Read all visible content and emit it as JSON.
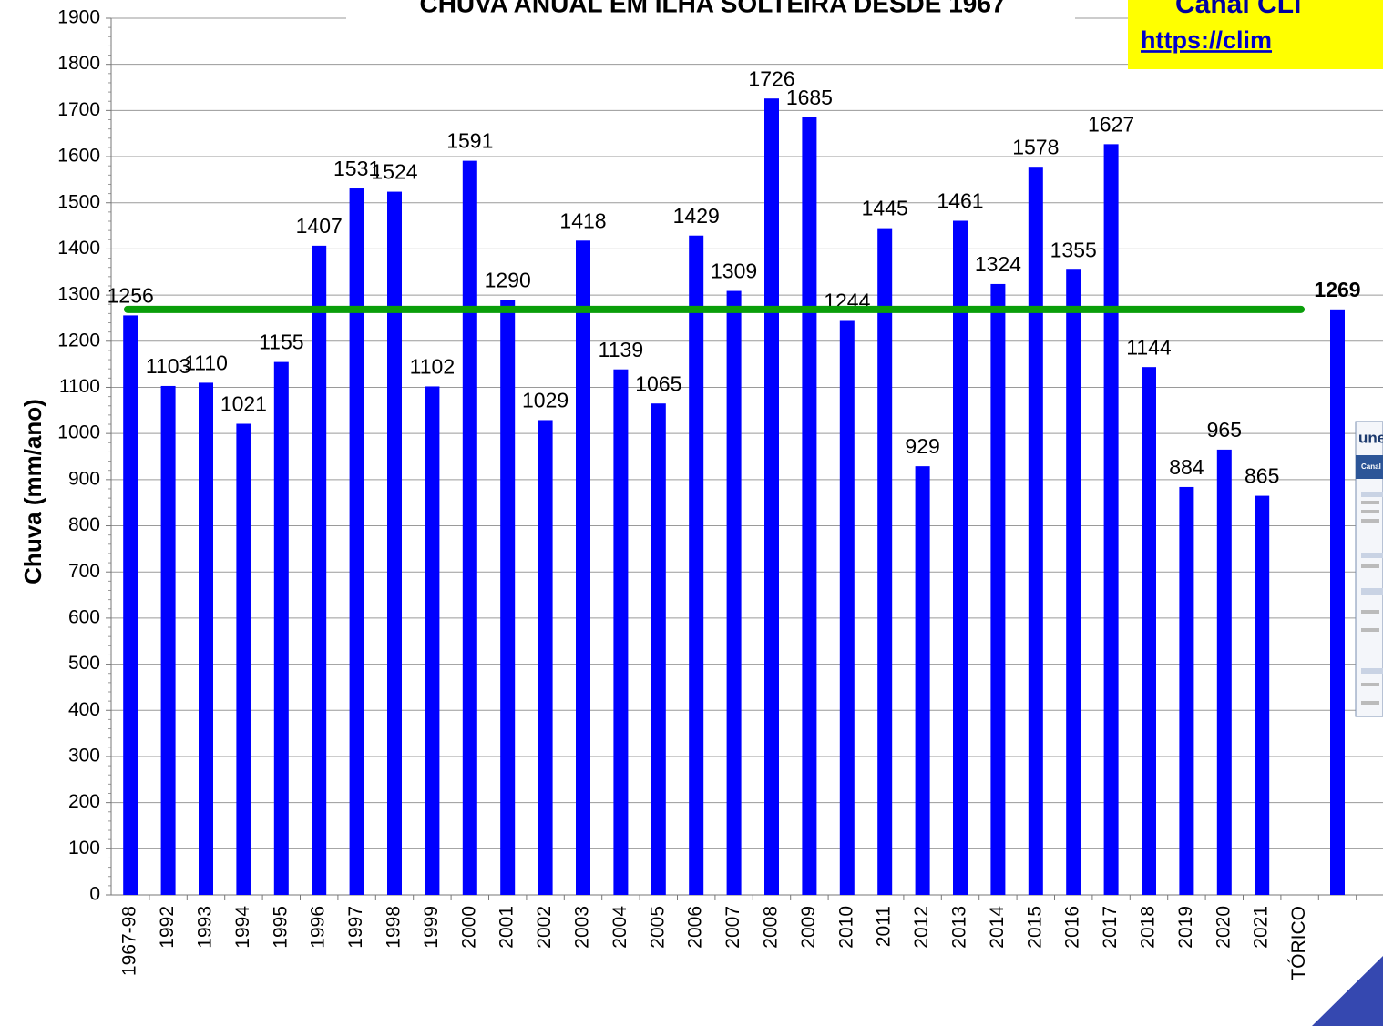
{
  "chart_data": {
    "type": "bar",
    "title": "CHUVA ANUAL EM ILHA SOLTEIRA DESDE 1967",
    "y_label": "Chuva (mm/ano)",
    "categories": [
      "1967-98",
      "1992",
      "1993",
      "1994",
      "1995",
      "1996",
      "1997",
      "1998",
      "1999",
      "2000",
      "2001",
      "2002",
      "2003",
      "2004",
      "2005",
      "2006",
      "2007",
      "2008",
      "2009",
      "2010",
      "2011",
      "2012",
      "2013",
      "2014",
      "2015",
      "2016",
      "2017",
      "2018",
      "2019",
      "2020",
      "2021",
      "TÓRICO",
      null
    ],
    "values": [
      1256,
      1103,
      1110,
      1021,
      1155,
      1407,
      1531,
      1524,
      1102,
      1591,
      1290,
      1029,
      1418,
      1139,
      1065,
      1429,
      1309,
      1726,
      1685,
      1244,
      1445,
      929,
      1461,
      1324,
      1578,
      1355,
      1627,
      1144,
      884,
      965,
      865,
      null,
      1269
    ],
    "color": "#0000ff",
    "ylim": [
      0,
      1900
    ],
    "yticks": [
      0,
      100,
      200,
      300,
      400,
      500,
      600,
      700,
      800,
      900,
      1000,
      1100,
      1200,
      1300,
      1400,
      1500,
      1600,
      1700,
      1800,
      1900
    ],
    "grid": true,
    "average_line": {
      "value": 1269,
      "color": "#0a9e0a"
    },
    "banner": {
      "line1": "Canal CLI",
      "line2": "https://clim"
    },
    "inset": {
      "logo": "une",
      "tab": "Canal"
    }
  }
}
